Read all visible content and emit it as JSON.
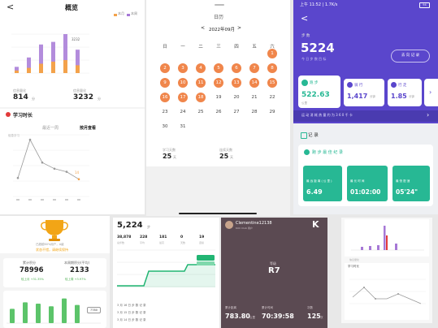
{
  "panel_a": {
    "back_glyph": "<",
    "title": "概览",
    "legend": [
      "本月",
      "本周"
    ],
    "month_bars": [
      0.12,
      0.3,
      0.55,
      0.6,
      0.75,
      0.45
    ],
    "week_bars": [
      0.05,
      0.1,
      0.18,
      0.22,
      0.25,
      0.15
    ],
    "bar_label": "3232",
    "stat1_label": "信息量化",
    "stat1_value": "814",
    "stat1_unit": "分",
    "stat2_label": "信息量化",
    "stat2_value": "3232",
    "stat2_unit": "分",
    "section_title": "学习时长",
    "tab_recent": "最近一周",
    "tab_month": "按月查看",
    "line_y_label": "信息学习",
    "line_points": [
      0.3,
      0.92,
      0.55,
      0.45,
      0.4,
      0.28
    ],
    "line_end_label": "14",
    "colors": {
      "purple": "#a678d6",
      "orange": "#f3a24b",
      "red": "#e23a3a",
      "line": "#9a9a9a"
    }
  },
  "panel_b": {
    "header": "日历",
    "prev": "<",
    "month": "2022年09月",
    "next": ">",
    "weekdays": [
      "日",
      "一",
      "二",
      "三",
      "四",
      "五",
      "六"
    ],
    "days": [
      "1",
      "2",
      "3",
      "4",
      "5",
      "6",
      "7",
      "8",
      "9",
      "10",
      "11",
      "12",
      "13",
      "14",
      "15",
      "16",
      "17",
      "18",
      "19",
      "20",
      "21",
      "22",
      "23",
      "24",
      "25",
      "26",
      "27",
      "28",
      "29",
      "30",
      "31"
    ],
    "marked_days": [
      1,
      2,
      3,
      4,
      5,
      6,
      7,
      8,
      9,
      10,
      11,
      12,
      13,
      14,
      15,
      16,
      17,
      18
    ],
    "summary_left_label": "学习天数",
    "summary_left_value": "25",
    "summary_left_unit": "天",
    "summary_mid_label": "共累",
    "summary_right_label": "连续天数",
    "summary_right_value": "25",
    "summary_right_unit": "天",
    "accent": "#f0864b"
  },
  "panel_c": {
    "status_time": "上午 11:52 | 1.7K/s",
    "status_battery": "94",
    "back_glyph": "<",
    "steps_label": "步 数",
    "steps_value": "5224",
    "steps_unit": "步",
    "steps_sub": "今 日 步 数 目 标",
    "right_button": "去 向 记 录",
    "metrics": [
      {
        "icon": "A",
        "label": "跑 步",
        "value": "522.63",
        "unit": "公里"
      },
      {
        "icon": "B",
        "label": "骑 行",
        "value": "1,417",
        "unit": "分钟"
      },
      {
        "icon": "C",
        "label": "行 走",
        "value": "1.85",
        "unit": "分钟"
      }
    ],
    "banner_text": "运 动 消 耗 热 量 约 为 3 6 0 千 卡",
    "section_label": "记 录",
    "card_title": "跑 步 最 佳 纪 录",
    "tiles": [
      {
        "label": "最 远 距 离 ( 公 里 )",
        "value": "6.49"
      },
      {
        "label": "最 长 时 间",
        "value": "01:02:00"
      },
      {
        "label": "最 快 配 速",
        "value": "05'24\""
      }
    ],
    "bg": "#5a46cc"
  },
  "panel_d": {
    "trophy": "奖杯",
    "caption1": "已超越60%用户，A级",
    "caption2": "状态不错，请继续保持",
    "stat1_label": "累计积分",
    "stat1_value": "78996",
    "stat1_delta": "较上月 +31.35%",
    "stat2_label": "本周期积分(平均)",
    "stat2_value": "2133",
    "stat2_delta": "较上周 +3.97%",
    "bars": [
      0.55,
      0.8,
      0.75,
      0.65,
      0.95,
      0.7
    ],
    "bar_tag": "7780",
    "bar_color": "#5cc46a"
  },
  "panel_e": {
    "main_value": "5,224",
    "main_unit": "步",
    "cols": [
      {
        "label": "总步数",
        "value": "38,878"
      },
      {
        "label": "平均",
        "value": "228"
      },
      {
        "label": "最高",
        "value": "181"
      },
      {
        "label": "天数",
        "value": "0"
      },
      {
        "label": "连续",
        "value": "19"
      }
    ],
    "line_color": "#22b573",
    "rows": [
      "3 月 16 日 步 数 记 录",
      "3 月 15 日 步 数 记 录",
      "3 月 14 日 步 数 记 录"
    ]
  },
  "panel_f": {
    "user_name": "Clementine12138",
    "user_sub": "KUC Club 用户",
    "logo": "K",
    "level_label": "等级",
    "level_value": "R7",
    "stats": [
      {
        "label": "累计距离",
        "value": "783.80",
        "unit": "公里"
      },
      {
        "label": "累计时间",
        "value": "70:39:58",
        "unit": ""
      },
      {
        "label": "次数",
        "value": "125",
        "unit": "次"
      }
    ],
    "bg": "#5b4a52"
  },
  "panel_g": {
    "bars_title": "信息量化",
    "lines_title": "学习时长",
    "bar_colors": [
      "#a678d6",
      "#e23a3a"
    ]
  }
}
